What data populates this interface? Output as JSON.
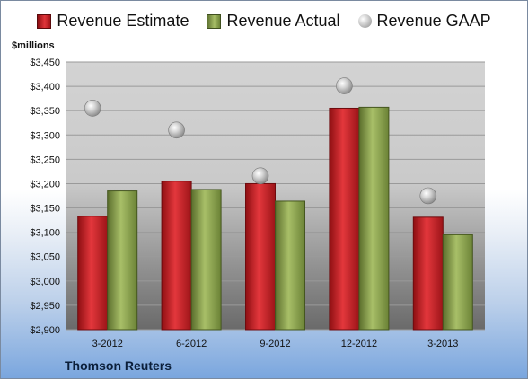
{
  "legend": {
    "estimate": "Revenue Estimate",
    "actual": "Revenue Actual",
    "gaap": "Revenue GAAP"
  },
  "units_label": "$millions",
  "source": "Thomson Reuters",
  "colors": {
    "estimate": "#c8242a",
    "actual": "#8fa652",
    "gaap": "#b8b8b8"
  },
  "chart_data": {
    "type": "bar",
    "categories": [
      "3-2012",
      "6-2012",
      "9-2012",
      "12-2012",
      "3-2013"
    ],
    "series": [
      {
        "name": "Revenue Estimate",
        "type": "bar",
        "values": [
          3133,
          3205,
          3200,
          3355,
          3131
        ]
      },
      {
        "name": "Revenue Actual",
        "type": "bar",
        "values": [
          3185,
          3188,
          3164,
          3357,
          3095
        ]
      },
      {
        "name": "Revenue GAAP",
        "type": "scatter",
        "values": [
          3355,
          3310,
          3216,
          3401,
          3175
        ]
      }
    ],
    "ylabel": "$millions",
    "ylim": [
      2900,
      3450
    ],
    "yticks": [
      2900,
      2950,
      3000,
      3050,
      3100,
      3150,
      3200,
      3250,
      3300,
      3350,
      3400,
      3450
    ],
    "ytick_labels": [
      "$2,900",
      "$2,950",
      "$3,000",
      "$3,050",
      "$3,100",
      "$3,150",
      "$3,200",
      "$3,250",
      "$3,300",
      "$3,350",
      "$3,400",
      "$3,450"
    ],
    "grid": true,
    "legend_position": "top"
  }
}
